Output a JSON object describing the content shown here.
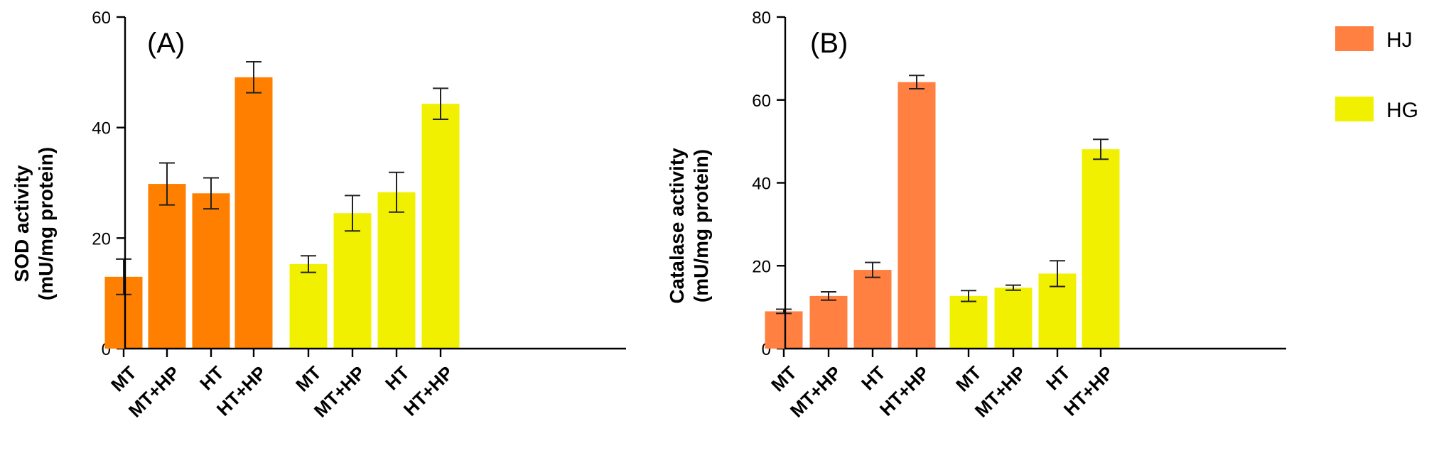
{
  "legend": [
    {
      "name": "HJ",
      "color_panel_a": "#FF8000",
      "color_panel_b": "#FF8040"
    },
    {
      "name": "HG",
      "color": "#F0F000"
    }
  ],
  "chart_data": [
    {
      "type": "bar",
      "panel_label": "(A)",
      "ylabel_line1": "SOD activity",
      "ylabel_line2": "(mU/mg protein)",
      "ylim": [
        0,
        60
      ],
      "yticks": [
        0,
        20,
        40,
        60
      ],
      "categories": [
        "MT",
        "MT+HP",
        "HT",
        "HT+HP"
      ],
      "series": [
        {
          "name": "HJ",
          "color": "#FF8000",
          "values": [
            13,
            29.8,
            28.1,
            49.1
          ],
          "errors": [
            3.2,
            3.8,
            2.8,
            2.8
          ]
        },
        {
          "name": "HG",
          "color": "#F0F000",
          "values": [
            15.3,
            24.5,
            28.3,
            44.3
          ],
          "errors": [
            1.5,
            3.2,
            3.6,
            2.8
          ]
        }
      ]
    },
    {
      "type": "bar",
      "panel_label": "(B)",
      "ylabel_line1": "Catalase activity",
      "ylabel_line2": "(mU/mg protein)",
      "ylim": [
        0,
        80
      ],
      "yticks": [
        0,
        20,
        40,
        60,
        80
      ],
      "categories": [
        "MT",
        "MT+HP",
        "HT",
        "HT+HP"
      ],
      "series": [
        {
          "name": "HJ",
          "color": "#FF8040",
          "values": [
            9,
            12.7,
            19,
            64.3
          ],
          "errors": [
            0.5,
            1.0,
            1.8,
            1.6
          ]
        },
        {
          "name": "HG",
          "color": "#F0F000",
          "values": [
            12.7,
            14.7,
            18.1,
            48.1
          ],
          "errors": [
            1.3,
            0.6,
            3.1,
            2.4
          ]
        }
      ]
    }
  ]
}
